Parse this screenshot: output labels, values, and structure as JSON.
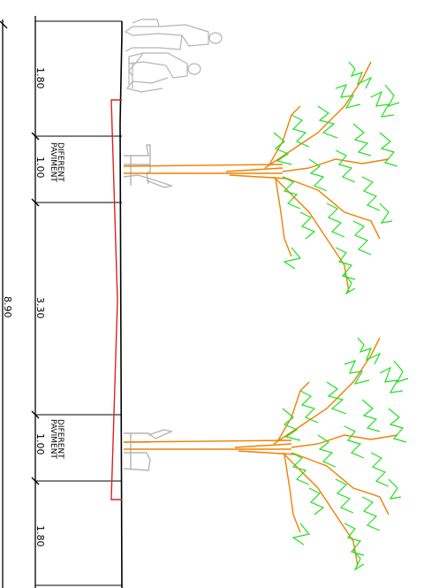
{
  "drawing": {
    "type": "street cross-section",
    "colors": {
      "dimension_line": "#000000",
      "kerb_outline": "#e02020",
      "tree_trunk": "#f08000",
      "tree_foliage": "#20e020",
      "furniture": "#b4b4b4"
    },
    "overall_dimension": "8.90",
    "segments": [
      {
        "value": "1.80",
        "note": ""
      },
      {
        "value": "1.00",
        "note": "PAVIMENT DIFERENT"
      },
      {
        "value": "3.30",
        "note": ""
      },
      {
        "value": "1.00",
        "note": "PAVIMENT DIFERENT"
      },
      {
        "value": "1.80",
        "note": ""
      }
    ],
    "elements": [
      {
        "name": "people-group",
        "count": 2
      },
      {
        "name": "bench",
        "count": 2
      },
      {
        "name": "tree",
        "count": 2
      }
    ]
  }
}
